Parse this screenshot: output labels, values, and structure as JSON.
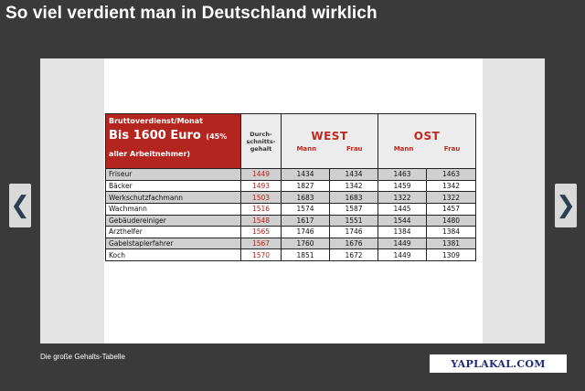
{
  "header": {
    "title": "So viel verdient man in Deutschland wirklich"
  },
  "nav": {
    "prev_icon": "chevron-left-icon",
    "next_icon": "chevron-right-icon",
    "prev_glyph": "❮",
    "next_glyph": "❯"
  },
  "table": {
    "header_line1": "Bruttoverdienst/Monat",
    "header_line2": "Bis 1600 Euro",
    "header_line3": "(45% aller Arbeitnehmer)",
    "avg_header": "Durch-schnitts-gehalt",
    "west": "WEST",
    "ost": "OST",
    "mann": "Mann",
    "frau": "Frau",
    "rows": [
      {
        "job": "Friseur",
        "avg": "1449",
        "west_m": "1434",
        "west_f": "1434",
        "ost_m": "1463",
        "ost_f": "1463"
      },
      {
        "job": "Bäcker",
        "avg": "1493",
        "west_m": "1827",
        "west_f": "1342",
        "ost_m": "1459",
        "ost_f": "1342"
      },
      {
        "job": "Werkschutzfachmann",
        "avg": "1503",
        "west_m": "1683",
        "west_f": "1683",
        "ost_m": "1322",
        "ost_f": "1322"
      },
      {
        "job": "Wachmann",
        "avg": "1516",
        "west_m": "1574",
        "west_f": "1587",
        "ost_m": "1445",
        "ost_f": "1457"
      },
      {
        "job": "Gebäudereiniger",
        "avg": "1548",
        "west_m": "1617",
        "west_f": "1551",
        "ost_m": "1544",
        "ost_f": "1480"
      },
      {
        "job": "Arzthelfer",
        "avg": "1565",
        "west_m": "1746",
        "west_f": "1746",
        "ost_m": "1384",
        "ost_f": "1384"
      },
      {
        "job": "Gabelstaplerfahrer",
        "avg": "1567",
        "west_m": "1760",
        "west_f": "1676",
        "ost_m": "1449",
        "ost_f": "1381"
      },
      {
        "job": "Koch",
        "avg": "1570",
        "west_m": "1851",
        "west_f": "1672",
        "ost_m": "1449",
        "ost_f": "1309"
      }
    ]
  },
  "caption": "Die große Gehalts-Tabelle",
  "watermark": "YAPLAKAL.COM",
  "colors": {
    "accent": "#b5251f",
    "background": "#3a3a3a",
    "watermark_text": "#1e2a78"
  }
}
